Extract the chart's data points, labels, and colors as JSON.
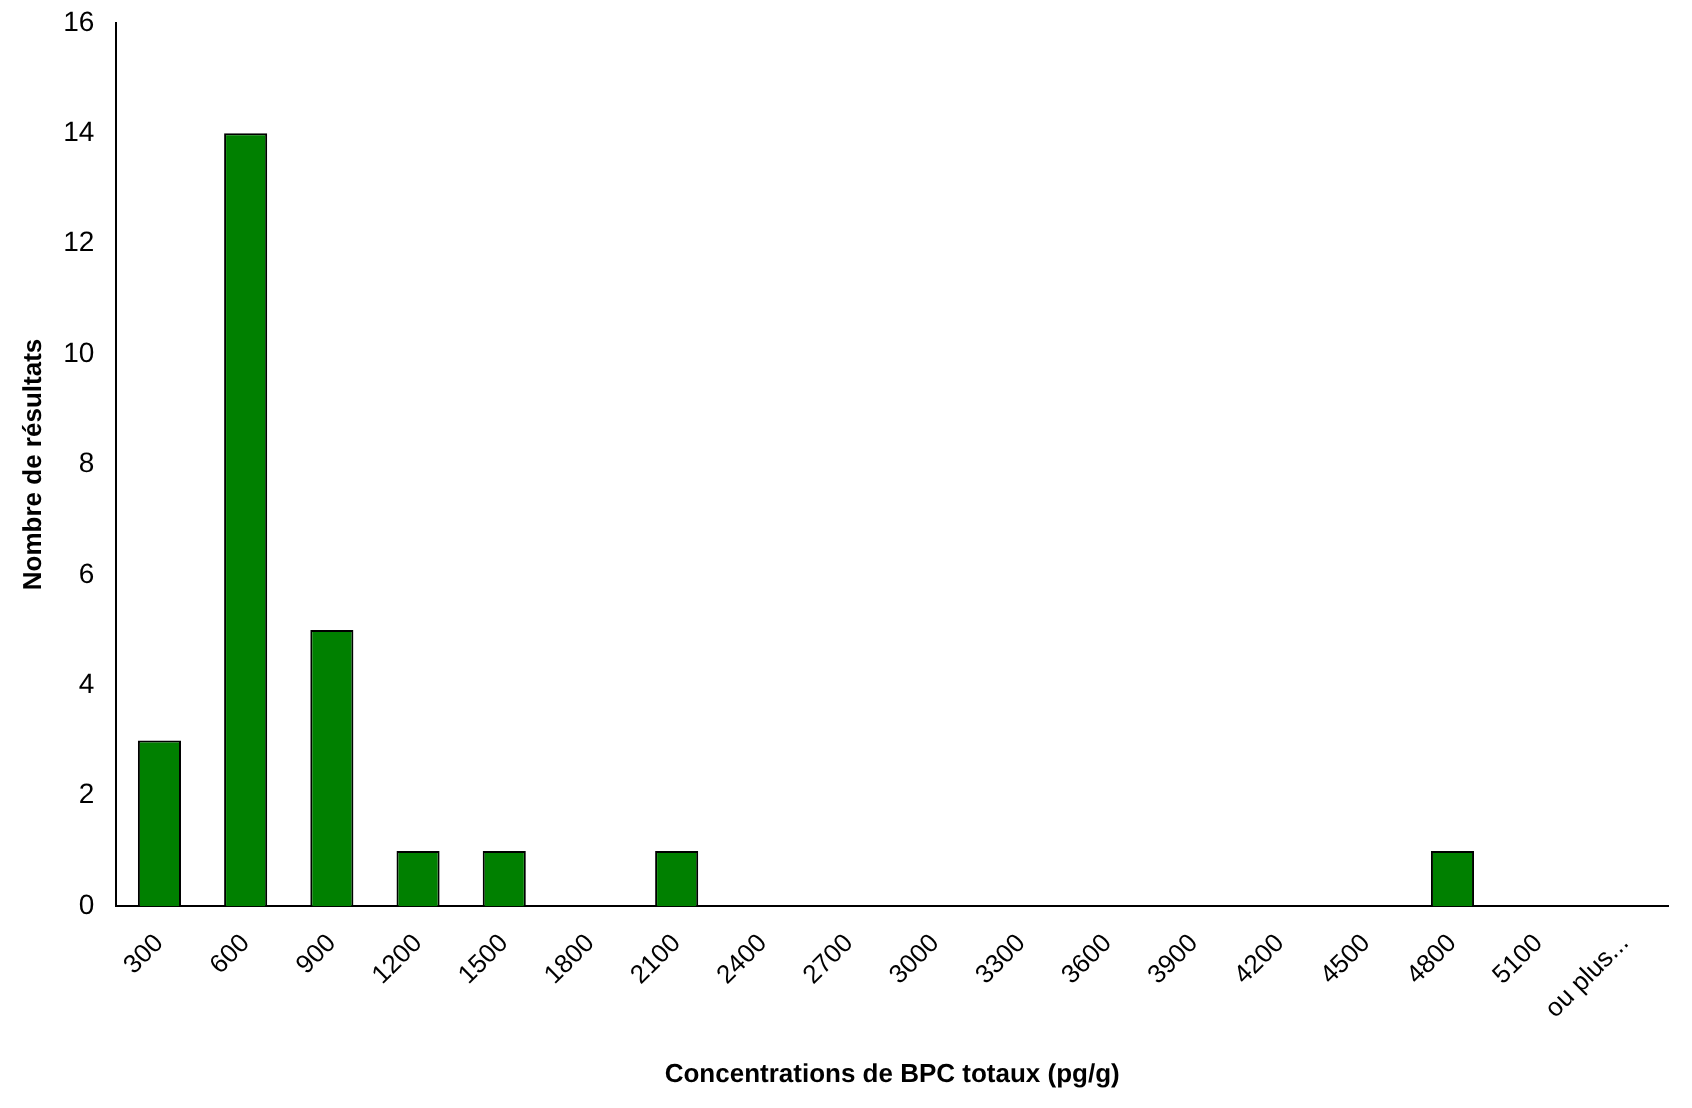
{
  "chart_data": {
    "type": "bar",
    "xlabel": "Concentrations de BPC totaux (pg/g)",
    "ylabel": "Nombre de résultats",
    "categories": [
      "300",
      "600",
      "900",
      "1200",
      "1500",
      "1800",
      "2100",
      "2400",
      "2700",
      "3000",
      "3300",
      "3600",
      "3900",
      "4200",
      "4500",
      "4800",
      "5100",
      "ou plus..."
    ],
    "values": [
      3,
      14,
      5,
      1,
      1,
      0,
      1,
      0,
      0,
      0,
      0,
      0,
      0,
      0,
      0,
      1,
      0,
      0
    ],
    "color": "#008000",
    "ylim": [
      0,
      16
    ],
    "yticks": [
      0,
      2,
      4,
      6,
      8,
      10,
      12,
      14,
      16
    ],
    "grid": false,
    "legend": false
  }
}
